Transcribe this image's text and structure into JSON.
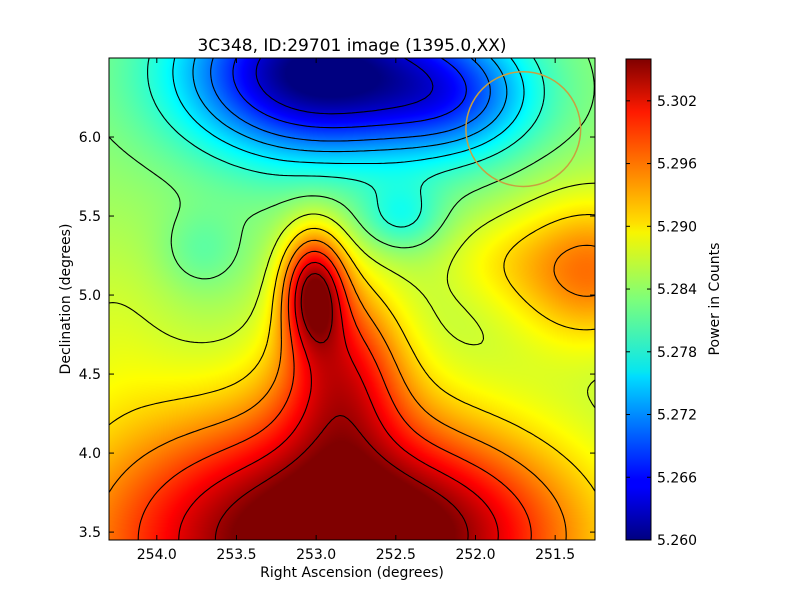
{
  "chart_data": {
    "type": "heatmap",
    "title": "3C348, ID:29701 image (1395.0,XX)",
    "xlabel": "Right Ascension (degrees)",
    "ylabel": "Declination (degrees)",
    "colorbar_label": "Power in Counts",
    "x_range": [
      254.3,
      251.25
    ],
    "y_range": [
      3.45,
      6.5
    ],
    "x_ticks": [
      254.0,
      253.5,
      253.0,
      252.5,
      252.0,
      251.5
    ],
    "x_tick_labels": [
      "254.0",
      "253.5",
      "253.0",
      "252.5",
      "252.0",
      "251.5"
    ],
    "y_ticks": [
      3.5,
      4.0,
      4.5,
      5.0,
      5.5,
      6.0
    ],
    "y_tick_labels": [
      "3.5",
      "4.0",
      "4.5",
      "5.0",
      "5.5",
      "6.0"
    ],
    "colorbar_range": [
      5.26,
      5.306
    ],
    "colorbar_ticks": [
      5.26,
      5.266,
      5.272,
      5.278,
      5.284,
      5.29,
      5.296,
      5.302
    ],
    "colorbar_tick_labels": [
      "5.260",
      "5.266",
      "5.272",
      "5.278",
      "5.284",
      "5.290",
      "5.296",
      "5.302"
    ],
    "colormap": "jet",
    "grid": false,
    "features": [
      {
        "kind": "minimum",
        "ra": 253.0,
        "dec": 6.05,
        "value": 5.26
      },
      {
        "kind": "maximum",
        "ra": 253.1,
        "dec": 5.05,
        "value": 5.305
      },
      {
        "kind": "maximum",
        "ra": 252.9,
        "dec": 3.7,
        "value": 5.306
      },
      {
        "kind": "local_high",
        "ra": 251.3,
        "dec": 5.2,
        "value": 5.296
      }
    ],
    "overlay_circle": {
      "ra": 251.7,
      "dec": 6.05,
      "radius_deg": 0.36,
      "color": "#c8a040"
    }
  }
}
